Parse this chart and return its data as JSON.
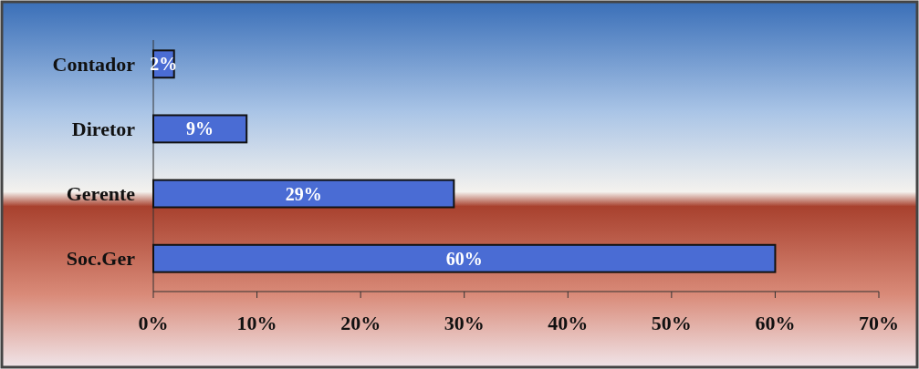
{
  "chart_data": {
    "type": "bar",
    "orientation": "horizontal",
    "categories": [
      "Contador",
      "Diretor",
      "Gerente",
      "Soc.Ger"
    ],
    "values": [
      2,
      9,
      29,
      60
    ],
    "value_labels": [
      "2%",
      "9%",
      "29%",
      "60%"
    ],
    "color": "#4a6cd4",
    "xlim": [
      0,
      70
    ],
    "xticks": [
      {
        "value": 0,
        "label": "0%"
      },
      {
        "value": 10,
        "label": "10%"
      },
      {
        "value": 20,
        "label": "20%"
      },
      {
        "value": 30,
        "label": "30%"
      },
      {
        "value": 40,
        "label": "40%"
      },
      {
        "value": 50,
        "label": "50%"
      },
      {
        "value": 60,
        "label": "60%"
      },
      {
        "value": 70,
        "label": "70%"
      }
    ],
    "grid": false
  }
}
